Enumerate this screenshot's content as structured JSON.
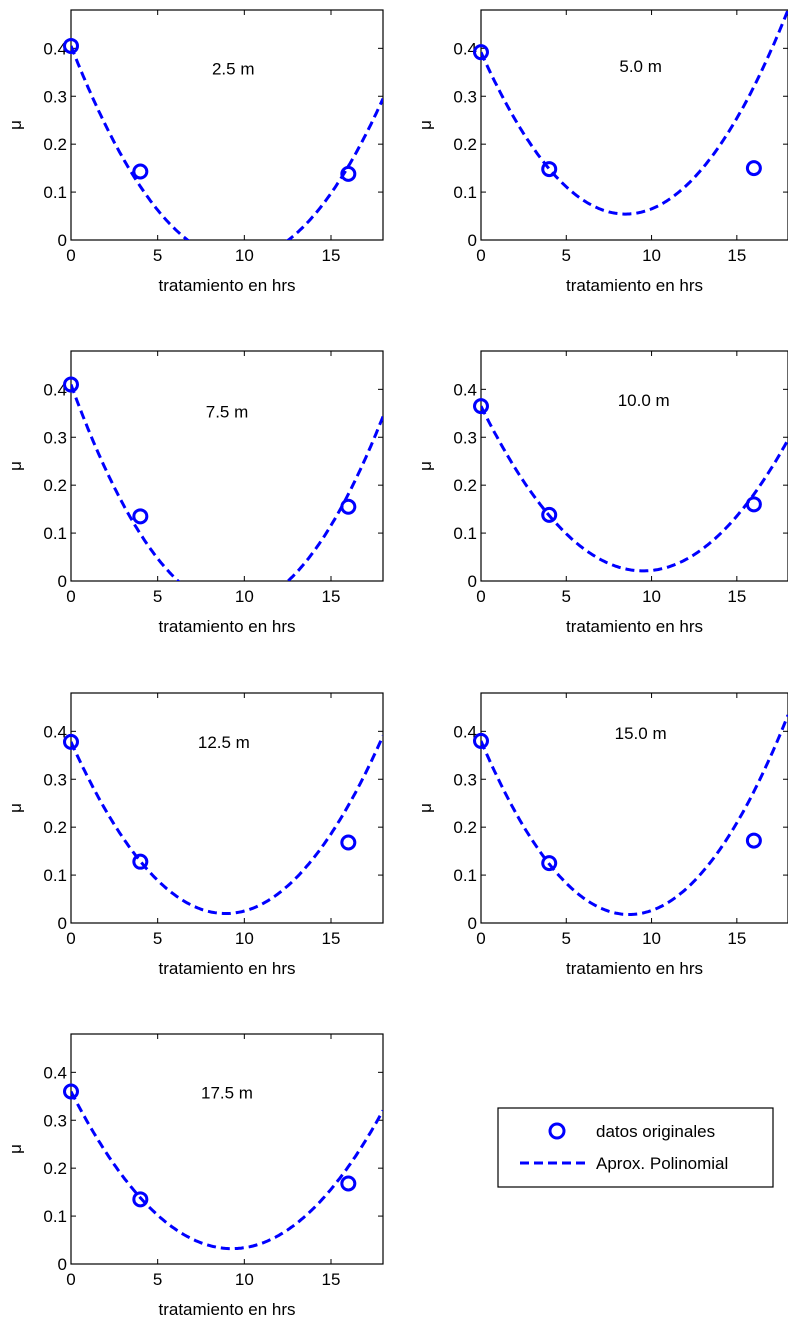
{
  "chart_data": [
    {
      "type": "line",
      "title": "2.5 m",
      "xlabel": "tratamiento en hrs",
      "ylabel": "μ",
      "xlim": [
        0,
        18
      ],
      "ylim": [
        0,
        0.48
      ],
      "xticks": [
        0,
        5,
        10,
        15
      ],
      "yticks": [
        0,
        0.1,
        0.2,
        0.3,
        0.4
      ],
      "grid": false,
      "series": [
        {
          "name": "datos originales",
          "style": "markers",
          "x": [
            0,
            4,
            16
          ],
          "y": [
            0.405,
            0.143,
            0.138
          ]
        },
        {
          "name": "Aprox. Polinomial",
          "style": "dashed",
          "coefficients": [
            0.405,
            -0.0925,
            0.0048
          ]
        }
      ]
    },
    {
      "type": "line",
      "title": "5.0 m",
      "xlabel": "tratamiento en hrs",
      "ylabel": "μ",
      "xlim": [
        0,
        18
      ],
      "ylim": [
        0,
        0.48
      ],
      "xticks": [
        0,
        5,
        10,
        15
      ],
      "yticks": [
        0,
        0.1,
        0.2,
        0.3,
        0.4
      ],
      "grid": false,
      "series": [
        {
          "name": "datos originales",
          "style": "markers",
          "x": [
            0,
            4,
            16
          ],
          "y": [
            0.392,
            0.148,
            0.15
          ]
        },
        {
          "name": "Aprox. Polinomial",
          "style": "dashed",
          "coefficients": [
            0.392,
            -0.0797,
            0.0047
          ]
        }
      ]
    },
    {
      "type": "line",
      "title": "7.5 m",
      "xlabel": "tratamiento en hrs",
      "ylabel": "μ",
      "xlim": [
        0,
        18
      ],
      "ylim": [
        0,
        0.48
      ],
      "xticks": [
        0,
        5,
        10,
        15
      ],
      "yticks": [
        0,
        0.1,
        0.2,
        0.3,
        0.4
      ],
      "grid": false,
      "series": [
        {
          "name": "datos originales",
          "style": "markers",
          "x": [
            0,
            4,
            16
          ],
          "y": [
            0.41,
            0.135,
            0.155
          ]
        },
        {
          "name": "Aprox. Polinomial",
          "style": "dashed",
          "coefficients": [
            0.41,
            -0.0991,
            0.0053
          ]
        }
      ]
    },
    {
      "type": "line",
      "title": "10.0 m",
      "xlabel": "tratamiento en hrs",
      "ylabel": "μ",
      "xlim": [
        0,
        18
      ],
      "ylim": [
        0,
        0.48
      ],
      "xticks": [
        0,
        5,
        10,
        15
      ],
      "yticks": [
        0,
        0.1,
        0.2,
        0.3,
        0.4
      ],
      "grid": false,
      "series": [
        {
          "name": "datos originales",
          "style": "markers",
          "x": [
            0,
            4,
            16
          ],
          "y": [
            0.365,
            0.138,
            0.16
          ]
        },
        {
          "name": "Aprox. Polinomial",
          "style": "dashed",
          "coefficients": [
            0.365,
            -0.0723,
            0.0038
          ]
        }
      ]
    },
    {
      "type": "line",
      "title": "12.5 m",
      "xlabel": "tratamiento en hrs",
      "ylabel": "μ",
      "xlim": [
        0,
        18
      ],
      "ylim": [
        0,
        0.48
      ],
      "xticks": [
        0,
        5,
        10,
        15
      ],
      "yticks": [
        0,
        0.1,
        0.2,
        0.3,
        0.4
      ],
      "grid": false,
      "series": [
        {
          "name": "datos originales",
          "style": "markers",
          "x": [
            0,
            4,
            16
          ],
          "y": [
            0.378,
            0.128,
            0.168
          ]
        },
        {
          "name": "Aprox. Polinomial",
          "style": "dashed",
          "coefficients": [
            0.378,
            -0.0803,
            0.0045
          ]
        }
      ]
    },
    {
      "type": "line",
      "title": "15.0 m",
      "xlabel": "tratamiento en hrs",
      "ylabel": "μ",
      "xlim": [
        0,
        18
      ],
      "ylim": [
        0,
        0.48
      ],
      "xticks": [
        0,
        5,
        10,
        15
      ],
      "yticks": [
        0,
        0.1,
        0.2,
        0.3,
        0.4
      ],
      "grid": false,
      "series": [
        {
          "name": "datos originales",
          "style": "markers",
          "x": [
            0,
            4,
            16
          ],
          "y": [
            0.38,
            0.125,
            0.172
          ]
        },
        {
          "name": "Aprox. Polinomial",
          "style": "dashed",
          "coefficients": [
            0.38,
            -0.0834,
            0.0048
          ]
        }
      ]
    },
    {
      "type": "line",
      "title": "17.5 m",
      "xlabel": "tratamiento en hrs",
      "ylabel": "μ",
      "xlim": [
        0,
        18
      ],
      "ylim": [
        0,
        0.48
      ],
      "xticks": [
        0,
        5,
        10,
        15
      ],
      "yticks": [
        0,
        0.1,
        0.2,
        0.3,
        0.4
      ],
      "grid": false,
      "series": [
        {
          "name": "datos originales",
          "style": "markers",
          "x": [
            0,
            4,
            16
          ],
          "y": [
            0.36,
            0.135,
            0.168
          ]
        },
        {
          "name": "Aprox. Polinomial",
          "style": "dashed",
          "coefficients": [
            0.36,
            -0.0706,
            0.0038
          ]
        }
      ]
    }
  ],
  "legend": {
    "placement": "bottom-right",
    "items": [
      {
        "label": "datos originales",
        "style": "markers"
      },
      {
        "label": "Aprox. Polinomial",
        "style": "dashed"
      }
    ]
  },
  "colors": {
    "series": "#0000ff",
    "axes": "#000000",
    "background": "#ffffff"
  }
}
